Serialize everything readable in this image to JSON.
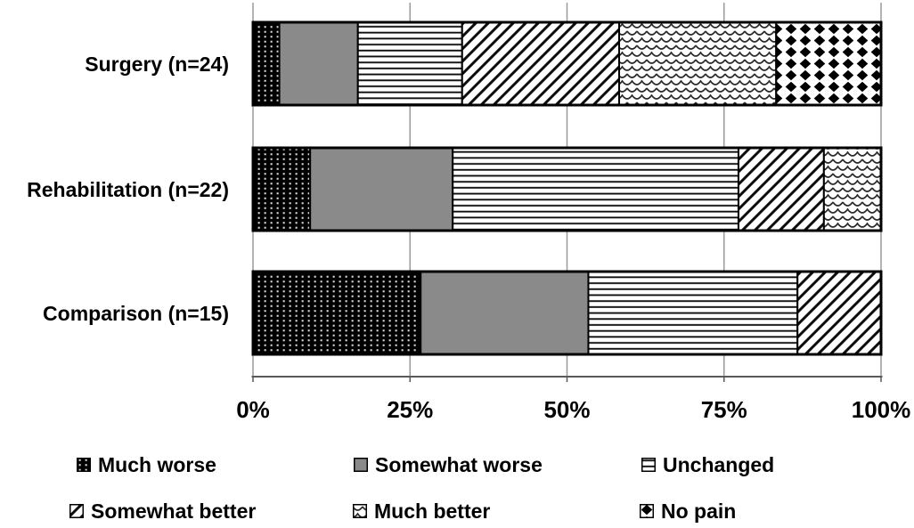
{
  "figure": {
    "background": "#ffffff",
    "text_color": "#000000"
  },
  "chart_data": {
    "type": "bar",
    "subtype": "horizontal-stacked-100pct",
    "title": "",
    "xlabel": "",
    "ylabel": "",
    "categories": [
      "Surgery (n=24)",
      "Rehabilitation (n=22)",
      "Comparison (n=15)"
    ],
    "series": [
      {
        "name": "Much worse",
        "pattern": "white-dots-on-black",
        "values": [
          4.2,
          9.1,
          26.7
        ]
      },
      {
        "name": "Somewhat worse",
        "pattern": "solid-gray",
        "values": [
          12.5,
          22.7,
          26.7
        ]
      },
      {
        "name": "Unchanged",
        "pattern": "horizontal-lines",
        "values": [
          16.6,
          45.5,
          33.3
        ]
      },
      {
        "name": "Somewhat better",
        "pattern": "diagonal-stripes",
        "values": [
          25.0,
          13.6,
          13.3
        ]
      },
      {
        "name": "Much better",
        "pattern": "shingle-scales",
        "values": [
          25.0,
          9.1,
          0
        ]
      },
      {
        "name": "No pain",
        "pattern": "black-diamonds",
        "values": [
          16.7,
          0,
          0
        ]
      }
    ],
    "x_ticks": [
      "0%",
      "25%",
      "50%",
      "75%",
      "100%"
    ],
    "xlim": [
      0,
      100
    ],
    "grid": "vertical-gridlines-on",
    "legend_position": "bottom-two-rows",
    "colors": {
      "grid_color": "#9a9a9a",
      "axis_color": "#595959",
      "bar_border": "#000000",
      "gray_fill": "#8a8a8a",
      "pattern_ink": "#0d0d0d"
    }
  }
}
